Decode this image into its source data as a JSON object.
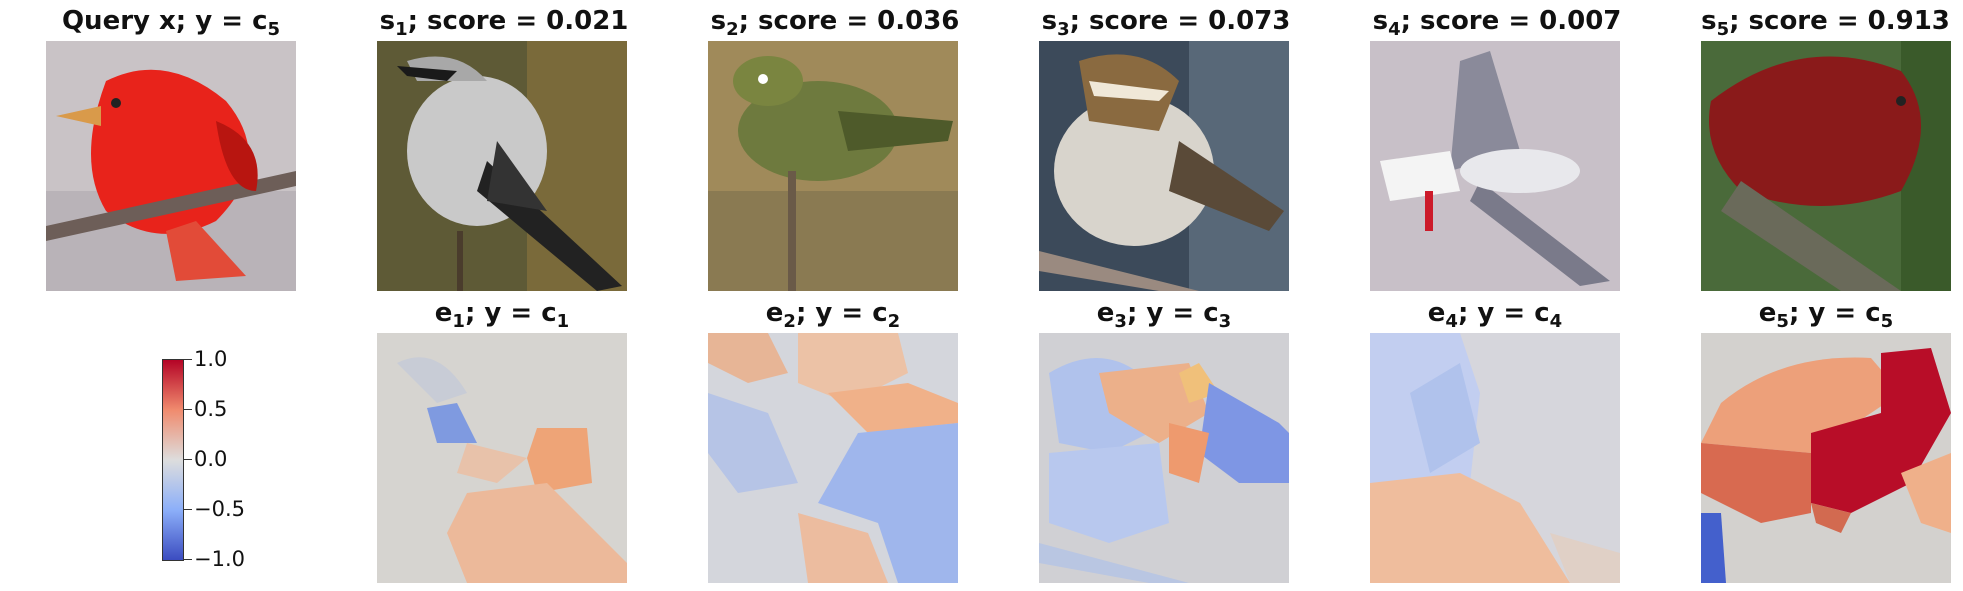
{
  "query": {
    "label": "Query x; y = ",
    "class_sub": "c5"
  },
  "samples": [
    {
      "sub": "1",
      "score_text": "; score = 0.021",
      "expl_sub": "1",
      "class_sub": "c1"
    },
    {
      "sub": "2",
      "score_text": "; score = 0.036",
      "expl_sub": "2",
      "class_sub": "c2"
    },
    {
      "sub": "3",
      "score_text": "; score = 0.073",
      "expl_sub": "3",
      "class_sub": "c3"
    },
    {
      "sub": "4",
      "score_text": "; score = 0.007",
      "expl_sub": "4",
      "class_sub": "c4"
    },
    {
      "sub": "5",
      "score_text": "; score = 0.913",
      "expl_sub": "5",
      "class_sub": "c5"
    }
  ],
  "labels": {
    "s": "s",
    "e": "e",
    "y_eq": "; y = "
  },
  "colorbar": {
    "ticks": [
      "1.0",
      "0.5",
      "0.0",
      "−0.5",
      "−1.0"
    ],
    "colors": [
      "#b40426",
      "#f08b6e",
      "#dddddd",
      "#8caff9",
      "#3b4cc0"
    ]
  }
}
